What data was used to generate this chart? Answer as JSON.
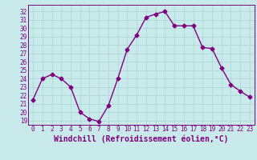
{
  "x": [
    0,
    1,
    2,
    3,
    4,
    5,
    6,
    7,
    8,
    9,
    10,
    11,
    12,
    13,
    14,
    15,
    16,
    17,
    18,
    19,
    20,
    21,
    22,
    23
  ],
  "y": [
    21.5,
    24.0,
    24.5,
    24.0,
    23.0,
    20.0,
    19.2,
    18.9,
    20.8,
    24.0,
    27.5,
    29.2,
    31.3,
    31.7,
    32.0,
    30.3,
    30.3,
    30.3,
    27.7,
    27.6,
    25.3,
    23.3,
    22.5,
    21.8
  ],
  "line_color": "#800080",
  "marker": "D",
  "markersize": 2.5,
  "linewidth": 1.0,
  "bg_color": "#c8eaea",
  "grid_color": "#aad4d4",
  "xlabel": "Windchill (Refroidissement éolien,°C)",
  "xlabel_fontsize": 7,
  "ylabel_ticks": [
    19,
    20,
    21,
    22,
    23,
    24,
    25,
    26,
    27,
    28,
    29,
    30,
    31,
    32
  ],
  "ylim": [
    18.5,
    32.8
  ],
  "xlim": [
    -0.5,
    23.5
  ],
  "tick_fontsize": 5.5,
  "figwidth": 3.2,
  "figheight": 2.0,
  "dpi": 100
}
